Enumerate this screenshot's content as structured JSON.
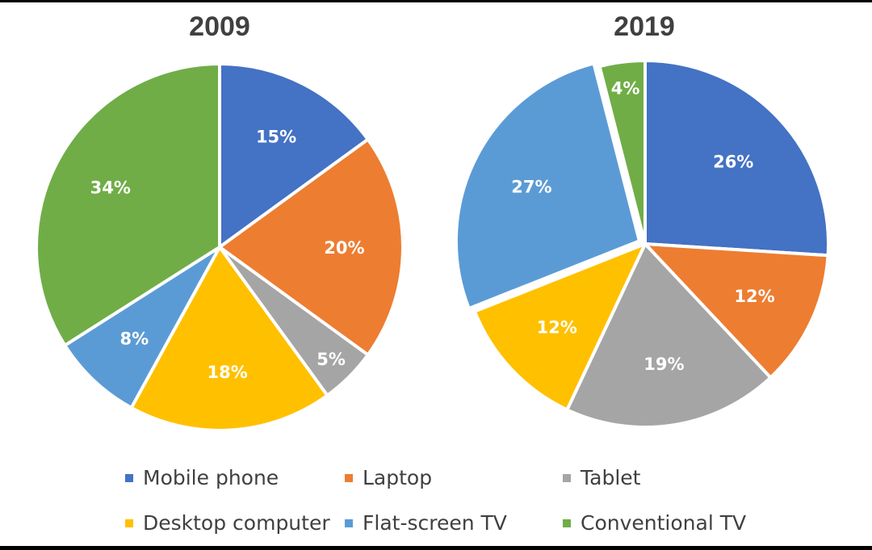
{
  "chart_data": [
    {
      "type": "pie",
      "title": "2009",
      "categories": [
        "Mobile phone",
        "Laptop",
        "Tablet",
        "Desktop computer",
        "Flat-screen TV",
        "Conventional TV"
      ],
      "values": [
        15,
        20,
        5,
        18,
        8,
        34
      ],
      "labels": [
        "15%",
        "20%",
        "5%",
        "18%",
        "8%",
        "34%"
      ]
    },
    {
      "type": "pie",
      "title": "2019",
      "categories": [
        "Mobile phone",
        "Laptop",
        "Tablet",
        "Desktop computer",
        "Flat-screen TV",
        "Conventional TV"
      ],
      "values": [
        26,
        12,
        19,
        12,
        27,
        4
      ],
      "labels": [
        "26%",
        "12%",
        "19%",
        "12%",
        "27%",
        "4%"
      ]
    }
  ],
  "legend": [
    {
      "label": "Mobile phone",
      "color": "#4472C4"
    },
    {
      "label": "Laptop",
      "color": "#ED7D31"
    },
    {
      "label": "Tablet",
      "color": "#A5A5A5"
    },
    {
      "label": "Desktop computer",
      "color": "#FFC000"
    },
    {
      "label": "Flat-screen TV",
      "color": "#5B9BD5"
    },
    {
      "label": "Conventional TV",
      "color": "#70AD47"
    }
  ],
  "legend_placement": "bottom"
}
